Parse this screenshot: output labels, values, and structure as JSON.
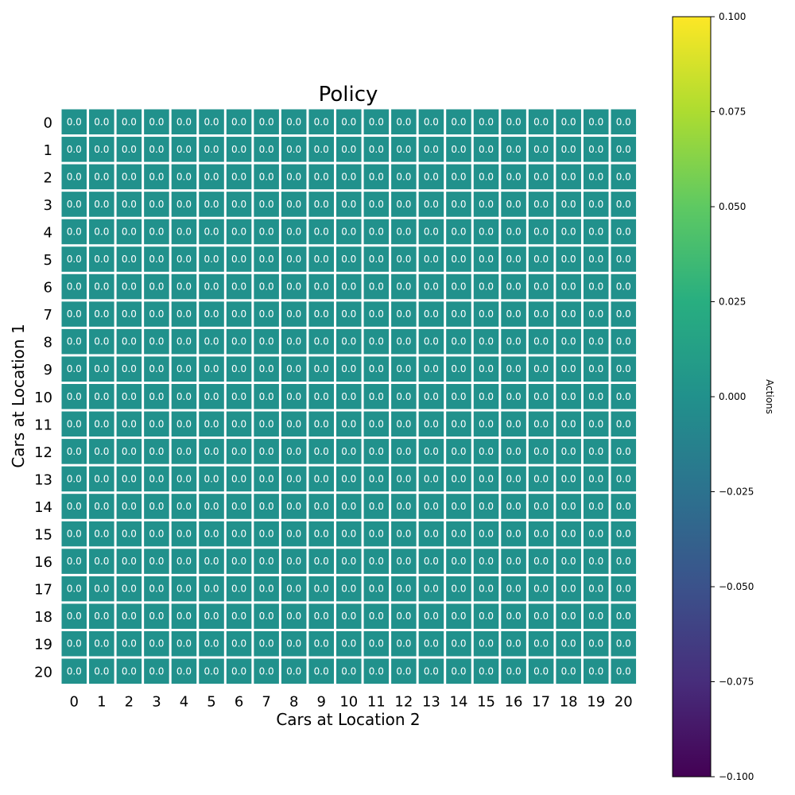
{
  "chart_data": {
    "type": "heatmap",
    "title": "Policy",
    "xlabel": "Cars at Location 2",
    "ylabel": "Cars at Location 1",
    "x_ticks": [
      "0",
      "1",
      "2",
      "3",
      "4",
      "5",
      "6",
      "7",
      "8",
      "9",
      "10",
      "11",
      "12",
      "13",
      "14",
      "15",
      "16",
      "17",
      "18",
      "19",
      "20"
    ],
    "y_ticks": [
      "0",
      "1",
      "2",
      "3",
      "4",
      "5",
      "6",
      "7",
      "8",
      "9",
      "10",
      "11",
      "12",
      "13",
      "14",
      "15",
      "16",
      "17",
      "18",
      "19",
      "20"
    ],
    "values": [
      [
        0,
        0,
        0,
        0,
        0,
        0,
        0,
        0,
        0,
        0,
        0,
        0,
        0,
        0,
        0,
        0,
        0,
        0,
        0,
        0,
        0
      ],
      [
        0,
        0,
        0,
        0,
        0,
        0,
        0,
        0,
        0,
        0,
        0,
        0,
        0,
        0,
        0,
        0,
        0,
        0,
        0,
        0,
        0
      ],
      [
        0,
        0,
        0,
        0,
        0,
        0,
        0,
        0,
        0,
        0,
        0,
        0,
        0,
        0,
        0,
        0,
        0,
        0,
        0,
        0,
        0
      ],
      [
        0,
        0,
        0,
        0,
        0,
        0,
        0,
        0,
        0,
        0,
        0,
        0,
        0,
        0,
        0,
        0,
        0,
        0,
        0,
        0,
        0
      ],
      [
        0,
        0,
        0,
        0,
        0,
        0,
        0,
        0,
        0,
        0,
        0,
        0,
        0,
        0,
        0,
        0,
        0,
        0,
        0,
        0,
        0
      ],
      [
        0,
        0,
        0,
        0,
        0,
        0,
        0,
        0,
        0,
        0,
        0,
        0,
        0,
        0,
        0,
        0,
        0,
        0,
        0,
        0,
        0
      ],
      [
        0,
        0,
        0,
        0,
        0,
        0,
        0,
        0,
        0,
        0,
        0,
        0,
        0,
        0,
        0,
        0,
        0,
        0,
        0,
        0,
        0
      ],
      [
        0,
        0,
        0,
        0,
        0,
        0,
        0,
        0,
        0,
        0,
        0,
        0,
        0,
        0,
        0,
        0,
        0,
        0,
        0,
        0,
        0
      ],
      [
        0,
        0,
        0,
        0,
        0,
        0,
        0,
        0,
        0,
        0,
        0,
        0,
        0,
        0,
        0,
        0,
        0,
        0,
        0,
        0,
        0
      ],
      [
        0,
        0,
        0,
        0,
        0,
        0,
        0,
        0,
        0,
        0,
        0,
        0,
        0,
        0,
        0,
        0,
        0,
        0,
        0,
        0,
        0
      ],
      [
        0,
        0,
        0,
        0,
        0,
        0,
        0,
        0,
        0,
        0,
        0,
        0,
        0,
        0,
        0,
        0,
        0,
        0,
        0,
        0,
        0
      ],
      [
        0,
        0,
        0,
        0,
        0,
        0,
        0,
        0,
        0,
        0,
        0,
        0,
        0,
        0,
        0,
        0,
        0,
        0,
        0,
        0,
        0
      ],
      [
        0,
        0,
        0,
        0,
        0,
        0,
        0,
        0,
        0,
        0,
        0,
        0,
        0,
        0,
        0,
        0,
        0,
        0,
        0,
        0,
        0
      ],
      [
        0,
        0,
        0,
        0,
        0,
        0,
        0,
        0,
        0,
        0,
        0,
        0,
        0,
        0,
        0,
        0,
        0,
        0,
        0,
        0,
        0
      ],
      [
        0,
        0,
        0,
        0,
        0,
        0,
        0,
        0,
        0,
        0,
        0,
        0,
        0,
        0,
        0,
        0,
        0,
        0,
        0,
        0,
        0
      ],
      [
        0,
        0,
        0,
        0,
        0,
        0,
        0,
        0,
        0,
        0,
        0,
        0,
        0,
        0,
        0,
        0,
        0,
        0,
        0,
        0,
        0
      ],
      [
        0,
        0,
        0,
        0,
        0,
        0,
        0,
        0,
        0,
        0,
        0,
        0,
        0,
        0,
        0,
        0,
        0,
        0,
        0,
        0,
        0
      ],
      [
        0,
        0,
        0,
        0,
        0,
        0,
        0,
        0,
        0,
        0,
        0,
        0,
        0,
        0,
        0,
        0,
        0,
        0,
        0,
        0,
        0
      ],
      [
        0,
        0,
        0,
        0,
        0,
        0,
        0,
        0,
        0,
        0,
        0,
        0,
        0,
        0,
        0,
        0,
        0,
        0,
        0,
        0,
        0
      ],
      [
        0,
        0,
        0,
        0,
        0,
        0,
        0,
        0,
        0,
        0,
        0,
        0,
        0,
        0,
        0,
        0,
        0,
        0,
        0,
        0,
        0
      ],
      [
        0,
        0,
        0,
        0,
        0,
        0,
        0,
        0,
        0,
        0,
        0,
        0,
        0,
        0,
        0,
        0,
        0,
        0,
        0,
        0,
        0
      ]
    ],
    "value_format": "0.0",
    "colorbar": {
      "label": "Actions",
      "range": [
        -0.1,
        0.1
      ],
      "tick_labels": [
        "−0.100",
        "−0.075",
        "−0.050",
        "−0.025",
        "0.000",
        "0.025",
        "0.050",
        "0.075",
        "0.100"
      ],
      "tick_values": [
        -0.1,
        -0.075,
        -0.05,
        -0.025,
        0,
        0.025,
        0.05,
        0.075,
        0.1
      ],
      "colormap": "viridis"
    },
    "colors": {
      "cell_gap": "#ffffff",
      "cell_text": "#ffffff"
    }
  }
}
